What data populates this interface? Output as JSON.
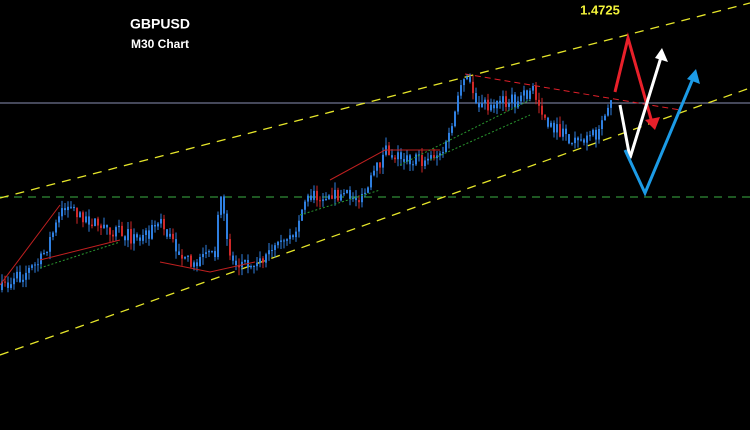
{
  "header": {
    "symbol": "GBPUSD",
    "timeframe": "M30 Chart"
  },
  "annotations": {
    "price_label": "1.4725"
  }
}
